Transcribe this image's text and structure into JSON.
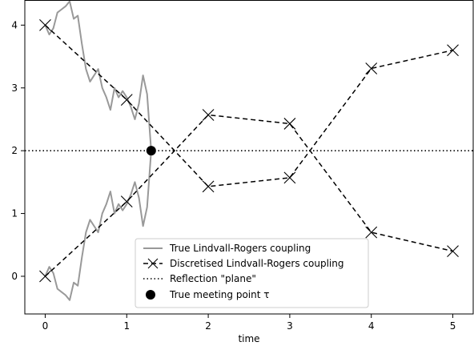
{
  "chart_data": {
    "type": "line",
    "xlabel": "time",
    "ylabel": "",
    "xlim": [
      -0.25,
      5.25
    ],
    "ylim": [
      -0.6,
      4.4
    ],
    "xticks": [
      0,
      1,
      2,
      3,
      4,
      5
    ],
    "yticks": [
      0,
      1,
      2,
      3,
      4
    ],
    "grid": false,
    "legend_position": "bottom-center",
    "legend": [
      "True Lindvall-Rogers coupling",
      "Discretised Lindvall-Rogers coupling",
      "Reflection \"plane\"",
      "True meeting point τ"
    ],
    "series": [
      {
        "name": "True Lindvall-Rogers coupling",
        "style": "solid",
        "color": "#999999",
        "paths": [
          {
            "x": [
              0,
              0.05,
              0.1,
              0.15,
              0.2,
              0.25,
              0.3,
              0.35,
              0.4,
              0.45,
              0.5,
              0.55,
              0.6,
              0.65,
              0.7,
              0.75,
              0.8,
              0.85,
              0.9,
              0.95,
              1.0,
              1.05,
              1.1,
              1.15,
              1.2,
              1.25,
              1.3
            ],
            "y": [
              4.0,
              3.85,
              3.95,
              4.2,
              4.25,
              4.3,
              4.38,
              4.1,
              4.15,
              3.7,
              3.3,
              3.1,
              3.2,
              3.3,
              3.0,
              2.85,
              2.65,
              3.0,
              2.85,
              2.95,
              2.85,
              2.7,
              2.5,
              2.75,
              3.2,
              2.9,
              2.0
            ]
          },
          {
            "x": [
              0,
              0.05,
              0.1,
              0.15,
              0.2,
              0.25,
              0.3,
              0.35,
              0.4,
              0.45,
              0.5,
              0.55,
              0.6,
              0.65,
              0.7,
              0.75,
              0.8,
              0.85,
              0.9,
              0.95,
              1.0,
              1.05,
              1.1,
              1.15,
              1.2,
              1.25,
              1.3
            ],
            "y": [
              0.0,
              0.15,
              0.05,
              -0.2,
              -0.25,
              -0.3,
              -0.38,
              -0.1,
              -0.15,
              0.3,
              0.7,
              0.9,
              0.8,
              0.7,
              1.0,
              1.15,
              1.35,
              1.0,
              1.15,
              1.05,
              1.15,
              1.3,
              1.5,
              1.25,
              0.8,
              1.1,
              2.0
            ]
          }
        ]
      },
      {
        "name": "Discretised Lindvall-Rogers coupling",
        "style": "dashed",
        "marker": "x",
        "color": "#000000",
        "paths": [
          {
            "x": [
              0,
              1,
              2,
              3,
              4,
              5
            ],
            "y": [
              4.0,
              2.81,
              1.43,
              1.57,
              3.31,
              3.6
            ]
          },
          {
            "x": [
              0,
              1,
              2,
              3,
              4,
              5
            ],
            "y": [
              0.0,
              1.19,
              2.57,
              2.43,
              0.7,
              0.4
            ]
          }
        ]
      },
      {
        "name": "Reflection \"plane\"",
        "style": "dotted",
        "color": "#000000",
        "y_constant": 2.0
      },
      {
        "name": "True meeting point τ",
        "style": "point",
        "color": "#000000",
        "x": [
          1.3
        ],
        "y": [
          2.0
        ]
      }
    ]
  }
}
